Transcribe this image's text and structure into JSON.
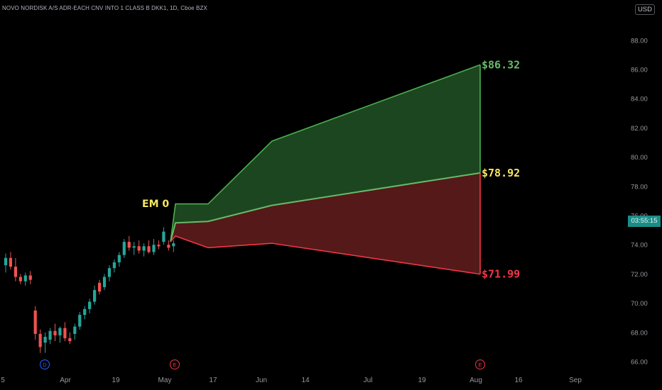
{
  "header": {
    "symbol_line": "NOVO NORDISK A/S ADR-EACH CNV INTO 1 CLASS B DKK1, 1D, Cboe BZX",
    "currency": "USD",
    "timer": "03:55:15"
  },
  "colors": {
    "up": "#26a69a",
    "down": "#ef5350",
    "green_zone_fill": "#1e4a22",
    "green_zone_line": "#4caf50",
    "red_zone_fill": "#5a1a1a",
    "red_zone_line": "#f23645",
    "mid_line": "#66bb6a",
    "em_label": "#f5e663"
  },
  "chart_data": {
    "type": "candlestick",
    "y_ticks": [
      "66.00",
      "68.00",
      "70.00",
      "72.00",
      "74.00",
      "76.00",
      "78.00",
      "80.00",
      "82.00",
      "84.00",
      "86.00",
      "88.00"
    ],
    "x_ticks": [
      "5",
      "Apr",
      "19",
      "May",
      "17",
      "Jun",
      "14",
      "Jul",
      "19",
      "Aug",
      "16",
      "Sep"
    ],
    "events": [
      {
        "label": "D",
        "type": "dividend",
        "color": "#2962ff"
      },
      {
        "label": "E",
        "type": "earnings",
        "color": "#f23645"
      },
      {
        "label": "E",
        "type": "earnings",
        "color": "#f23645"
      }
    ],
    "candles": [
      {
        "o": 72.6,
        "h": 73.4,
        "l": 72.1,
        "c": 73.1
      },
      {
        "o": 73.1,
        "h": 73.5,
        "l": 72.3,
        "c": 72.5
      },
      {
        "o": 72.5,
        "h": 73.1,
        "l": 71.5,
        "c": 71.8
      },
      {
        "o": 71.8,
        "h": 72.0,
        "l": 71.3,
        "c": 71.5
      },
      {
        "o": 71.5,
        "h": 72.1,
        "l": 71.2,
        "c": 71.9
      },
      {
        "o": 71.9,
        "h": 72.2,
        "l": 71.3,
        "c": 71.6
      },
      {
        "o": 69.5,
        "h": 69.8,
        "l": 67.5,
        "c": 67.9
      },
      {
        "o": 67.9,
        "h": 68.2,
        "l": 66.6,
        "c": 67.0
      },
      {
        "o": 67.3,
        "h": 68.0,
        "l": 66.6,
        "c": 67.7
      },
      {
        "o": 67.5,
        "h": 68.3,
        "l": 67.2,
        "c": 68.1
      },
      {
        "o": 68.1,
        "h": 68.6,
        "l": 67.4,
        "c": 67.8
      },
      {
        "o": 67.8,
        "h": 68.4,
        "l": 67.3,
        "c": 68.3
      },
      {
        "o": 68.3,
        "h": 68.7,
        "l": 67.4,
        "c": 67.6
      },
      {
        "o": 67.6,
        "h": 68.0,
        "l": 67.2,
        "c": 67.4
      },
      {
        "o": 67.9,
        "h": 68.6,
        "l": 67.5,
        "c": 68.4
      },
      {
        "o": 68.4,
        "h": 69.4,
        "l": 68.2,
        "c": 69.2
      },
      {
        "o": 69.2,
        "h": 69.8,
        "l": 68.9,
        "c": 69.6
      },
      {
        "o": 69.6,
        "h": 70.3,
        "l": 69.3,
        "c": 70.1
      },
      {
        "o": 70.1,
        "h": 71.2,
        "l": 69.9,
        "c": 70.9
      },
      {
        "o": 71.4,
        "h": 71.6,
        "l": 70.6,
        "c": 70.8
      },
      {
        "o": 71.1,
        "h": 72.0,
        "l": 70.9,
        "c": 71.8
      },
      {
        "o": 71.8,
        "h": 72.6,
        "l": 71.5,
        "c": 72.4
      },
      {
        "o": 72.4,
        "h": 73.0,
        "l": 72.1,
        "c": 72.8
      },
      {
        "o": 72.8,
        "h": 73.5,
        "l": 72.5,
        "c": 73.3
      },
      {
        "o": 73.3,
        "h": 74.4,
        "l": 73.1,
        "c": 74.2
      },
      {
        "o": 74.2,
        "h": 74.6,
        "l": 73.6,
        "c": 73.8
      },
      {
        "o": 73.8,
        "h": 74.2,
        "l": 73.3,
        "c": 73.9
      },
      {
        "o": 73.9,
        "h": 74.3,
        "l": 73.4,
        "c": 73.6
      },
      {
        "o": 73.6,
        "h": 74.1,
        "l": 73.2,
        "c": 73.9
      },
      {
        "o": 73.9,
        "h": 74.3,
        "l": 73.4,
        "c": 73.5
      },
      {
        "o": 73.5,
        "h": 74.4,
        "l": 73.3,
        "c": 74.0
      },
      {
        "o": 74.0,
        "h": 74.3,
        "l": 73.7,
        "c": 73.9
      },
      {
        "o": 74.2,
        "h": 75.2,
        "l": 74.0,
        "c": 74.9
      },
      {
        "o": 74.0,
        "h": 74.3,
        "l": 73.6,
        "c": 73.8
      },
      {
        "o": 73.9,
        "h": 74.3,
        "l": 73.5,
        "c": 74.1
      }
    ],
    "em_label": "EM 0",
    "projection": {
      "upper": {
        "points": [
          [
            0,
            74.2
          ],
          [
            1,
            76.8
          ],
          [
            2,
            76.8
          ],
          [
            3,
            81.1
          ],
          [
            4,
            86.32
          ]
        ],
        "label": "$86.32"
      },
      "mid": {
        "points": [
          [
            0,
            74.2
          ],
          [
            1,
            75.5
          ],
          [
            2,
            75.6
          ],
          [
            3,
            76.7
          ],
          [
            4,
            78.92
          ]
        ],
        "label": "$78.92"
      },
      "lower": {
        "points": [
          [
            0,
            74.2
          ],
          [
            1,
            74.6
          ],
          [
            2,
            73.8
          ],
          [
            3,
            74.1
          ],
          [
            4,
            71.99
          ]
        ],
        "label": "$71.99"
      }
    }
  }
}
